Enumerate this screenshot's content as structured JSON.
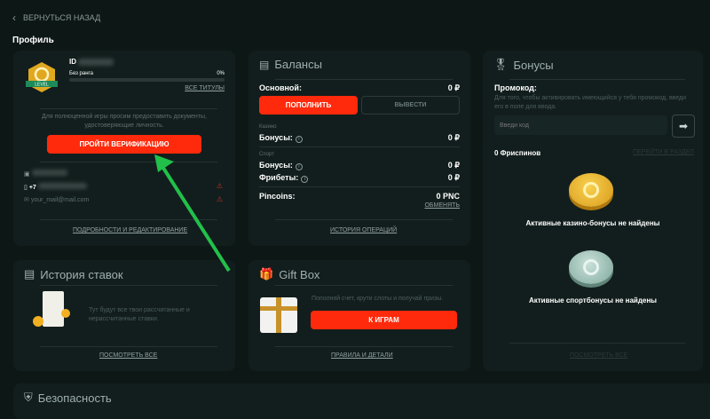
{
  "nav": {
    "back_label": "ВЕРНУТЬСЯ НАЗАД"
  },
  "page_title": "Профиль",
  "profile": {
    "id_label": "ID",
    "rank": "Без ранга",
    "rank_progress": "0%",
    "rank_progress_value": 0,
    "all_titles": "ВСЕ ТИТУЛЫ",
    "badge_text": "LEVEL",
    "verify_text": "Для полноценной игры просим предоставить документы, удостоверяющие личность.",
    "verify_button": "ПРОЙТИ ВЕРИФИКАЦИЮ",
    "phone_prefix": "+7",
    "email": "your_mail@mail.com",
    "details_link": "ПОДРОБНОСТИ И РЕДАКТИРОВАНИЕ"
  },
  "balances": {
    "title": "Балансы",
    "main_label": "Основной:",
    "main_value": "0 ₽",
    "deposit": "ПОПОЛНИТЬ",
    "withdraw": "ВЫВЕСТИ",
    "casino_label": "Казино",
    "casino_bonus_label": "Бонусы:",
    "casino_bonus_value": "0 ₽",
    "sport_label": "Спорт",
    "sport_bonus_label": "Бонусы:",
    "sport_bonus_value": "0 ₽",
    "freebets_label": "Фрибеты:",
    "freebets_value": "0 ₽",
    "pincoins_label": "Pincoins:",
    "pincoins_value": "0 PNC",
    "exchange": "ОБМЕНЯТЬ",
    "history_link": "ИСТОРИЯ ОПЕРАЦИЙ"
  },
  "bonuses": {
    "title": "Бонусы",
    "promo_label": "Промокод:",
    "promo_desc": "Для того, чтобы активировать имеющийся у тебя промокод, введи его в поле для ввода.",
    "promo_placeholder": "Введи код",
    "freespins": "0  Фриспинов",
    "goto_section": "ПЕРЕЙТИ В РАЗДЕЛ",
    "casino_empty": "Активные казино-бонусы не найдены",
    "sport_empty": "Активные спортбонусы не найдены",
    "view_all": "ПОСМОТРЕТЬ ВСЕ"
  },
  "bet_history": {
    "title": "История ставок",
    "text": "Тут будут все твои рассчитанные и нерассчитанные ставки.",
    "view_all": "ПОСМОТРЕТЬ ВСЕ"
  },
  "giftbox": {
    "title": "Gift Box",
    "text": "Пополняй счет, крути слоты и получай призы.",
    "button": "К ИГРАМ",
    "rules": "ПРАВИЛА И ДЕТАЛИ"
  },
  "security": {
    "title": "Безопасность"
  },
  "colors": {
    "accent": "#ff2a0b",
    "background": "#0d1716",
    "card": "#121e1d",
    "arrow": "#22c04a"
  }
}
